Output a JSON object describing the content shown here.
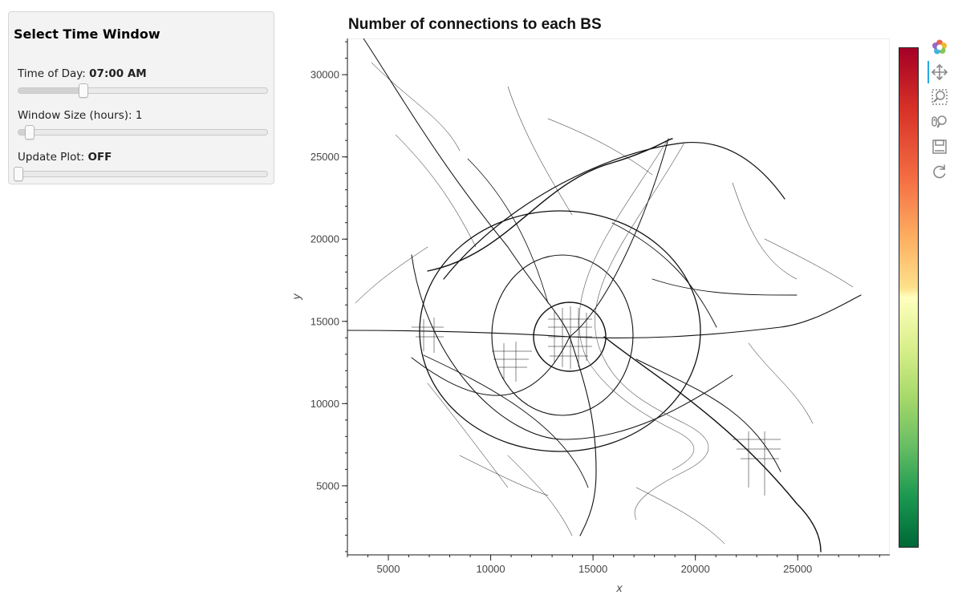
{
  "controls": {
    "title": "Select Time Window",
    "sliders": [
      {
        "label": "Time of Day: ",
        "value_text": "07:00 AM",
        "bold_value": true,
        "fraction": 0.26
      },
      {
        "label": "Window Size (hours): ",
        "value_text": "1",
        "bold_value": false,
        "fraction": 0.045
      },
      {
        "label": "Update Plot: ",
        "value_text": "OFF",
        "bold_value": true,
        "fraction": 0.0
      }
    ]
  },
  "chart_data": {
    "type": "scatter",
    "title": "Number of connections to each BS",
    "xlabel": "x",
    "ylabel": "y",
    "xlim": [
      3000,
      29500
    ],
    "ylim": [
      800,
      32200
    ],
    "xticks": [
      5000,
      10000,
      15000,
      20000,
      25000
    ],
    "yticks": [
      5000,
      10000,
      15000,
      20000,
      25000,
      30000
    ],
    "grid": false,
    "colorbar": {
      "colormap": "RdYlGn (reversed)",
      "top_color": "#a50026",
      "bottom_color": "#006837"
    },
    "series": []
  },
  "toolbar": {
    "tools": [
      "bokeh-logo-icon",
      "pan-icon",
      "box-zoom-icon",
      "wheel-zoom-icon",
      "save-icon",
      "reset-icon"
    ],
    "active": "pan-icon",
    "accent": "#26aae1"
  }
}
